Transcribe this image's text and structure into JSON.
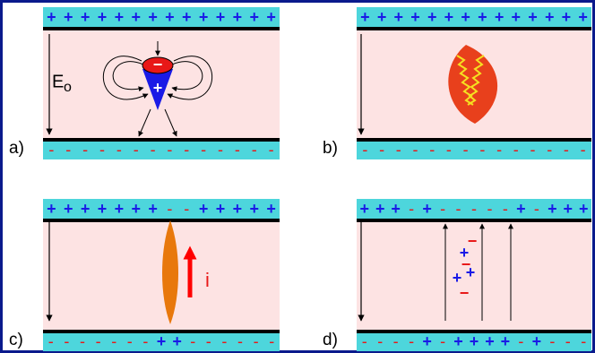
{
  "panels": [
    {
      "label": "a)",
      "top": "++++++++++++++",
      "bottom": "--------------",
      "field_label": "E",
      "field_subscript": "o",
      "dipole_minus": "−",
      "dipole_plus": "+"
    },
    {
      "label": "b)",
      "top": "++++++++++++++",
      "bottom": "--------------"
    },
    {
      "label": "c)",
      "top": "+++++++--+++++",
      "bottom": "-------++------",
      "current_label": "i"
    },
    {
      "label": "d)",
      "top": "+++-+-----+-+++",
      "bottom": "----+-++++-+---",
      "charges": [
        "−",
        "+",
        "−",
        "+",
        "+",
        "−"
      ]
    }
  ]
}
